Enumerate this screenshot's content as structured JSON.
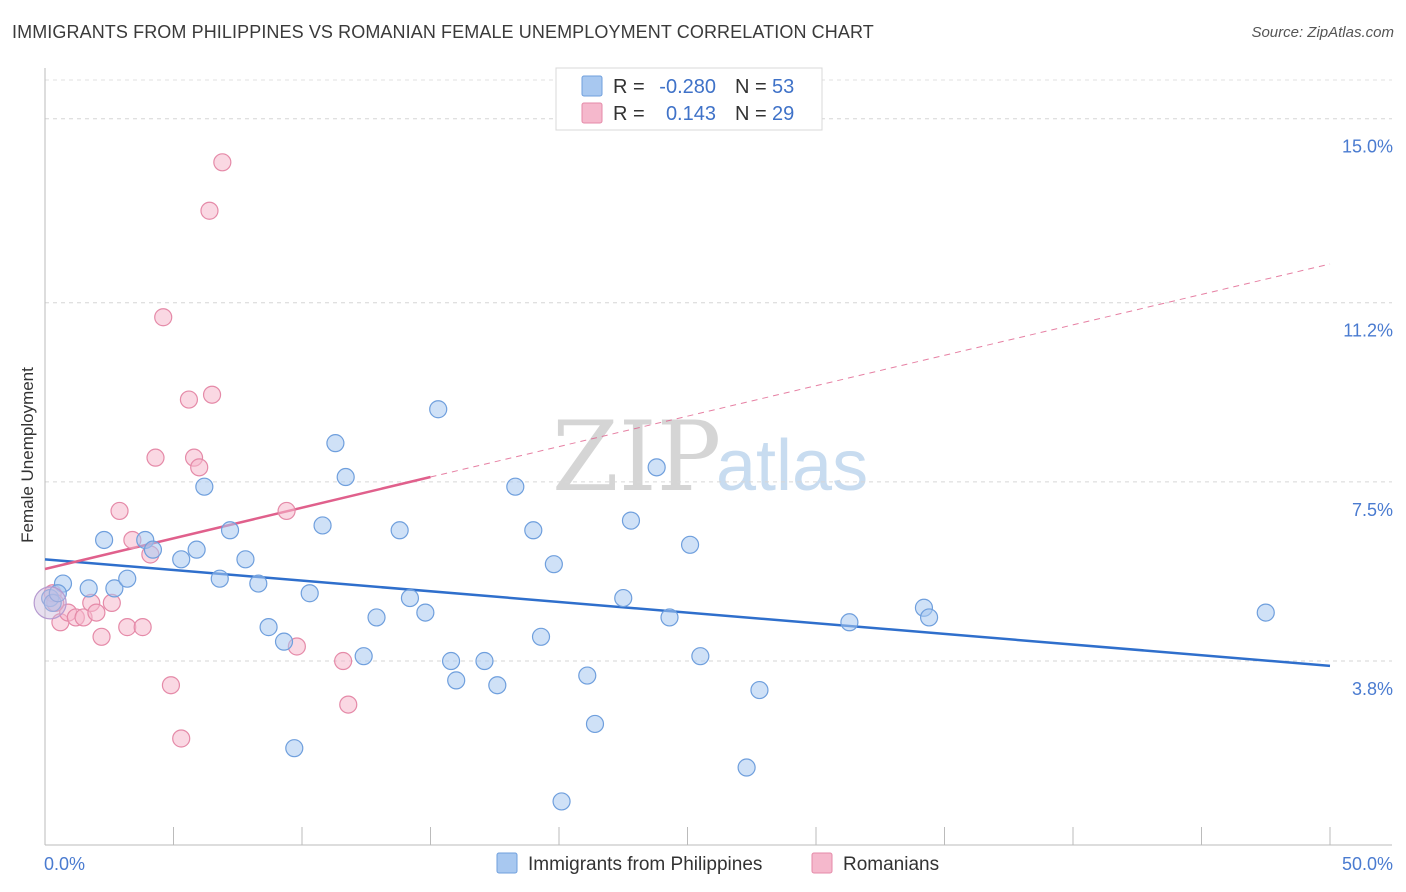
{
  "header": {
    "title": "IMMIGRANTS FROM PHILIPPINES VS ROMANIAN FEMALE UNEMPLOYMENT CORRELATION CHART",
    "source": "Source: ZipAtlas.com"
  },
  "legend": {
    "rows": [
      {
        "r_label": "R =",
        "r_value": "-0.280",
        "n_label": "N =",
        "n_value": "53",
        "color": "#a8c8f0"
      },
      {
        "r_label": "R =",
        "r_value": "0.143",
        "n_label": "N =",
        "n_value": "29",
        "color": "#f5b8cc"
      }
    ]
  },
  "watermark": {
    "zip": "ZIP",
    "atlas": "atlas"
  },
  "chart_data": {
    "type": "scatter",
    "title": "IMMIGRANTS FROM PHILIPPINES VS ROMANIAN FEMALE UNEMPLOYMENT CORRELATION CHART",
    "ylabel": "Female Unemployment",
    "xlabel": "",
    "xlim": [
      0,
      50
    ],
    "ylim": [
      0,
      15.8
    ],
    "x_tick_labels": [
      "0.0%",
      "50.0%"
    ],
    "y_ticks": [
      3.8,
      7.5,
      11.2,
      15.0
    ],
    "y_tick_labels": [
      "3.8%",
      "7.5%",
      "11.2%",
      "15.0%"
    ],
    "grid": "horizontal dashed",
    "series": [
      {
        "name": "Immigrants from Philippines",
        "color": "#a8c8f0",
        "stroke": "#6f9fdd",
        "trend": {
          "x": [
            0,
            50
          ],
          "y": [
            5.9,
            3.7
          ],
          "color": "#2f6fcc",
          "style": "solid"
        },
        "points": [
          [
            0.2,
            5.1
          ],
          [
            0.7,
            5.4
          ],
          [
            1.7,
            5.3
          ],
          [
            2.3,
            6.3
          ],
          [
            2.7,
            5.3
          ],
          [
            3.2,
            5.5
          ],
          [
            3.9,
            6.3
          ],
          [
            4.2,
            6.1
          ],
          [
            5.3,
            5.9
          ],
          [
            5.9,
            6.1
          ],
          [
            6.2,
            7.4
          ],
          [
            6.8,
            5.5
          ],
          [
            7.2,
            6.5
          ],
          [
            7.8,
            5.9
          ],
          [
            8.3,
            5.4
          ],
          [
            8.7,
            4.5
          ],
          [
            9.3,
            4.2
          ],
          [
            9.7,
            2.0
          ],
          [
            10.3,
            5.2
          ],
          [
            10.8,
            6.6
          ],
          [
            11.3,
            8.3
          ],
          [
            11.7,
            7.6
          ],
          [
            12.4,
            3.9
          ],
          [
            12.9,
            4.7
          ],
          [
            13.8,
            6.5
          ],
          [
            14.2,
            5.1
          ],
          [
            14.8,
            4.8
          ],
          [
            15.3,
            9.0
          ],
          [
            15.8,
            3.8
          ],
          [
            16.0,
            3.4
          ],
          [
            17.1,
            3.8
          ],
          [
            17.6,
            3.3
          ],
          [
            18.3,
            7.4
          ],
          [
            19.0,
            6.5
          ],
          [
            19.3,
            4.3
          ],
          [
            19.8,
            5.8
          ],
          [
            20.1,
            0.9
          ],
          [
            21.1,
            3.5
          ],
          [
            21.4,
            2.5
          ],
          [
            22.5,
            5.1
          ],
          [
            22.8,
            6.7
          ],
          [
            23.8,
            7.8
          ],
          [
            24.3,
            4.7
          ],
          [
            25.1,
            6.2
          ],
          [
            25.5,
            3.9
          ],
          [
            27.3,
            1.6
          ],
          [
            27.8,
            3.2
          ],
          [
            31.3,
            4.6
          ],
          [
            34.2,
            4.9
          ],
          [
            34.4,
            4.7
          ],
          [
            47.5,
            4.8
          ],
          [
            0.3,
            5.0
          ],
          [
            0.5,
            5.2
          ]
        ]
      },
      {
        "name": "Romanians",
        "color": "#f5b8cc",
        "stroke": "#e58aa8",
        "trend": {
          "x": [
            0,
            15
          ],
          "y": [
            5.7,
            7.6
          ],
          "color": "#e0608c",
          "style": "solid",
          "extension": {
            "x": [
              15,
              50
            ],
            "y": [
              7.6,
              12.0
            ],
            "style": "dashed"
          }
        },
        "points": [
          [
            0.3,
            5.2
          ],
          [
            0.6,
            4.6
          ],
          [
            0.9,
            4.8
          ],
          [
            1.2,
            4.7
          ],
          [
            1.5,
            4.7
          ],
          [
            1.8,
            5.0
          ],
          [
            2.0,
            4.8
          ],
          [
            2.2,
            4.3
          ],
          [
            2.6,
            5.0
          ],
          [
            2.9,
            6.9
          ],
          [
            3.2,
            4.5
          ],
          [
            3.4,
            6.3
          ],
          [
            3.8,
            4.5
          ],
          [
            4.1,
            6.0
          ],
          [
            4.3,
            8.0
          ],
          [
            4.6,
            10.9
          ],
          [
            4.9,
            3.3
          ],
          [
            5.3,
            2.2
          ],
          [
            5.6,
            9.2
          ],
          [
            5.8,
            8.0
          ],
          [
            6.0,
            7.8
          ],
          [
            6.4,
            13.1
          ],
          [
            6.5,
            9.3
          ],
          [
            6.9,
            14.1
          ],
          [
            9.4,
            6.9
          ],
          [
            9.8,
            4.1
          ],
          [
            11.6,
            3.8
          ],
          [
            11.8,
            2.9
          ],
          [
            0.4,
            5.0
          ]
        ]
      }
    ]
  }
}
